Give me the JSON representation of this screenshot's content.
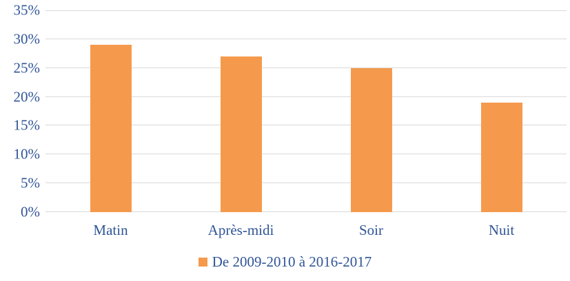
{
  "chart_data": {
    "type": "bar",
    "categories": [
      "Matin",
      "Après-midi",
      "Soir",
      "Nuit"
    ],
    "values": [
      29,
      27,
      25,
      19
    ],
    "series": [
      {
        "name": "De 2009-2010 à 2016-2017",
        "values": [
          29,
          27,
          25,
          19
        ]
      }
    ],
    "title": "",
    "xlabel": "",
    "ylabel": "",
    "ylim": [
      0,
      35
    ],
    "ytick_step": 5,
    "ytick_labels": [
      "0%",
      "5%",
      "10%",
      "15%",
      "20%",
      "25%",
      "30%",
      "35%"
    ],
    "grid": true,
    "legend_position": "bottom",
    "colors": {
      "bar": "#F59A4D",
      "text": "#2F5496",
      "gridline": "#D9D9D9"
    }
  },
  "legend": {
    "label": "De 2009-2010 à 2016-2017",
    "swatch_color": "#F59A4D"
  }
}
